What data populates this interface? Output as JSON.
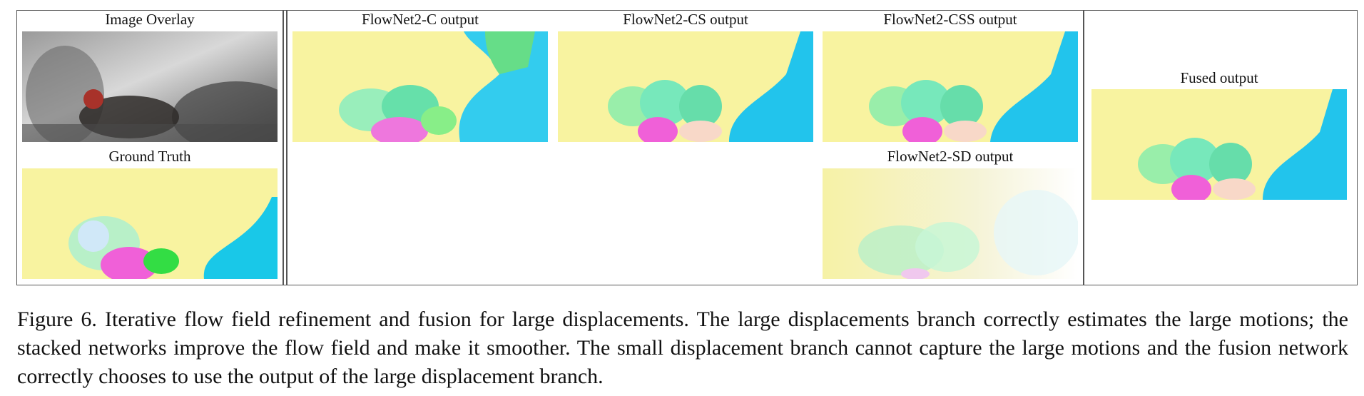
{
  "figure": {
    "panels": {
      "image_overlay": "Image Overlay",
      "ground_truth": "Ground Truth",
      "flownet2_c": "FlowNet2-C output",
      "flownet2_cs": "FlowNet2-CS output",
      "flownet2_css": "FlowNet2-CSS output",
      "flownet2_sd": "FlowNet2-SD output",
      "fused": "Fused output"
    },
    "caption": "Figure 6. Iterative flow field refinement and fusion for large displacements. The large displacements branch correctly estimates the large motions; the stacked networks improve the flow field and make it smoother. The small displacement branch cannot capture the large motions and the fusion network correctly chooses to use the output of the large displacement branch."
  }
}
